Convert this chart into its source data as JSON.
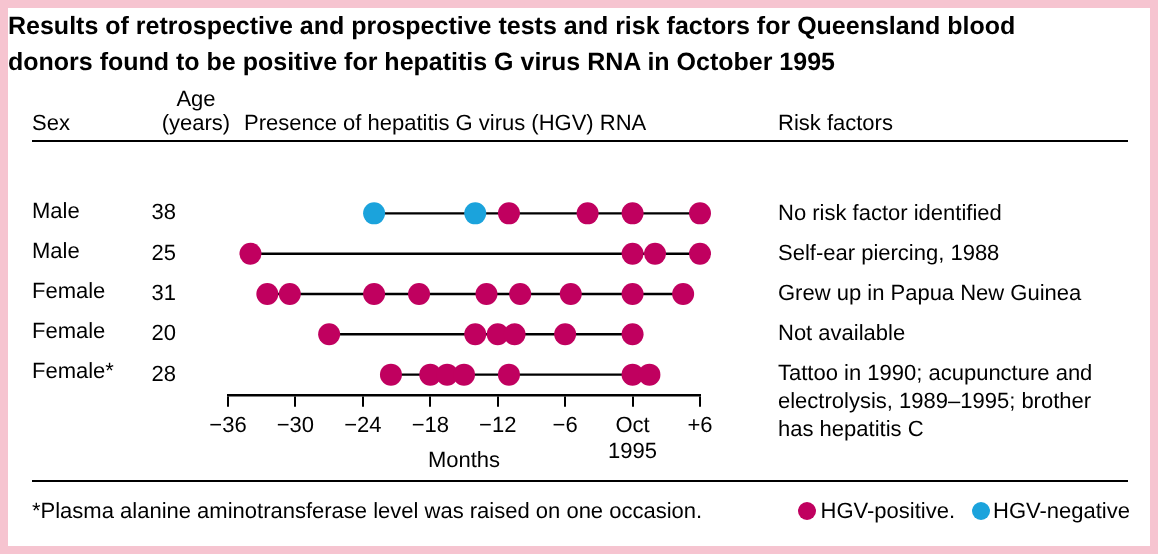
{
  "chart_data": {
    "type": "scatter",
    "orientation": "horizontal",
    "title": "Results of retrospective and prospective tests and risk factors for Queensland blood donors found to be positive for hepatitis G virus RNA in October 1995",
    "xlabel": "Months",
    "categories": [
      "38",
      "25",
      "31",
      "20",
      "28"
    ],
    "xlim": [
      -36,
      6
    ],
    "xticks": [
      {
        "value": -36,
        "label": "−36"
      },
      {
        "value": -30,
        "label": "−30"
      },
      {
        "value": -24,
        "label": "−24"
      },
      {
        "value": -18,
        "label": "−18"
      },
      {
        "value": -12,
        "label": "−12"
      },
      {
        "value": -6,
        "label": "−6"
      },
      {
        "value": 0,
        "label": "Oct 1995"
      },
      {
        "value": 6,
        "label": "+6"
      }
    ],
    "series": [
      {
        "name": "HGV-positive.",
        "color": "#c0005f",
        "x": [
          "38",
          "38",
          "38",
          "38",
          "25",
          "25",
          "25",
          "25",
          "31",
          "31",
          "31",
          "31",
          "31",
          "31",
          "31",
          "31",
          "31",
          "20",
          "20",
          "20",
          "20",
          "20",
          "20",
          "28",
          "28",
          "28",
          "28",
          "28",
          "28",
          "28"
        ],
        "values": [
          -11,
          -4,
          0,
          6,
          -34,
          0,
          2,
          6,
          -32.5,
          -30.5,
          -23,
          -19,
          -13,
          -10,
          -5.5,
          0,
          4.5,
          -27,
          -14,
          -12,
          -10.5,
          -6,
          0,
          -21.5,
          -18,
          -16.5,
          -15,
          -11,
          0,
          1.5
        ]
      },
      {
        "name": "HGV-negative",
        "color": "#1ba3dc",
        "x": [
          "38",
          "38"
        ],
        "values": [
          -23,
          -14
        ]
      }
    ],
    "marker": "circle",
    "legend": "bottom right",
    "annotations": [
      "Sex",
      "Age (years)",
      "Presence of hepatitis G virus (HGV) RNA",
      "Risk factors",
      "Male",
      "Male",
      "Female",
      "Female",
      "Female*",
      "No risk factor identified",
      "Self-ear piercing, 1988",
      "Grew up in Papua New Guinea",
      "Not available",
      "Tattoo in 1990; acupuncture and electrolysis, 1989–1995; brother has hepatitis C",
      "*Plasma alanine aminotransferase level was raised on one occasion."
    ]
  }
}
